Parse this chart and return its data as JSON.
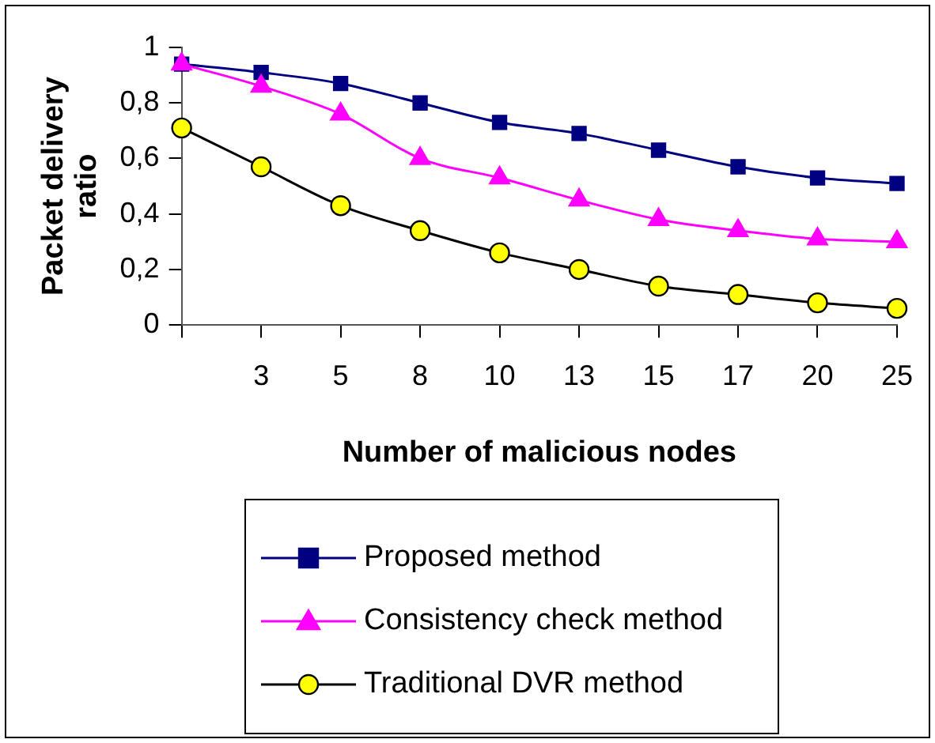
{
  "chart_data": {
    "type": "line",
    "xlabel": "Number of malicious nodes",
    "ylabel": "Packet delivery ratio",
    "categories": [
      null,
      "3",
      "5",
      "8",
      "10",
      "13",
      "15",
      "17",
      "20",
      "25"
    ],
    "series": [
      {
        "name": "Proposed method",
        "color": "#000080",
        "marker": "square",
        "values": [
          0.94,
          0.91,
          0.87,
          0.8,
          0.73,
          0.69,
          0.63,
          0.57,
          0.53,
          0.51
        ]
      },
      {
        "name": "Consistency check method",
        "color": "#ff00ff",
        "marker": "triangle",
        "values": [
          0.94,
          0.86,
          0.76,
          0.6,
          0.53,
          0.45,
          0.38,
          0.34,
          0.31,
          0.3
        ]
      },
      {
        "name": "Traditional DVR method",
        "color": "#ffff00",
        "marker": "circle",
        "values": [
          0.71,
          0.57,
          0.43,
          0.34,
          0.26,
          0.2,
          0.14,
          0.11,
          0.08,
          0.06
        ]
      }
    ],
    "ylim": [
      0,
      1
    ],
    "yticks": [
      0,
      {
        "value": 0.2,
        "label": "0,2"
      },
      {
        "value": 0.4,
        "label": "0,4"
      },
      {
        "value": 0.6,
        "label": "0,6"
      },
      {
        "value": 0.8,
        "label": "0,8"
      },
      1
    ],
    "grid": false,
    "legend": "bottom",
    "line_style": "solid"
  }
}
